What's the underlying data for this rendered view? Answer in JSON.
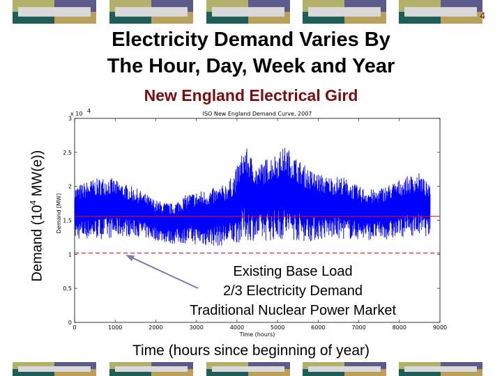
{
  "slide": {
    "number": "4",
    "title_line1": "Electricity Demand Varies By",
    "title_line2": "The Hour, Day, Week and Year",
    "subtitle": "New England Electrical Gird",
    "ylabel_main": "Demand (10",
    "ylabel_sup": "4",
    "ylabel_tail": " MW(e))",
    "xlabel": "Time (hours since beginning of year)",
    "annotation": [
      "Existing Base Load",
      "2/3 Electricity Demand",
      "Traditional Nuclear Power Market"
    ],
    "colors": {
      "accent_red": "#7a0c0c",
      "band_teal": "#1f5d57",
      "band_olive": "#b3b06a",
      "band_purple": "#5c5a8a",
      "band_gold": "#b8a05a",
      "band_light": "#d9d9d9"
    }
  },
  "chart_data": {
    "type": "line",
    "title": "ISO New England Demand Curve, 2007",
    "xlabel": "Time (hours)",
    "ylabel": "Demand [MW]",
    "y_multiplier": "x 10",
    "y_multiplier_exp": "4",
    "xlim": [
      0,
      9000
    ],
    "ylim": [
      0,
      30000
    ],
    "xticks": [
      "0",
      "1000",
      "2000",
      "3000",
      "4000",
      "5000",
      "6000",
      "7000",
      "8000",
      "9000"
    ],
    "yticks": [
      "0",
      "0.5",
      "1",
      "1.5",
      "2",
      "2.5",
      "3"
    ],
    "grid": false,
    "series": [
      {
        "color": "#0000ff",
        "x": [
          0,
          400,
          800,
          1200,
          1600,
          2000,
          2400,
          2800,
          3200,
          3600,
          3900,
          4200,
          4500,
          4800,
          5000,
          5200,
          5500,
          5800,
          6200,
          6600,
          7000,
          7400,
          7800,
          8200,
          8500,
          8760
        ],
        "ymin": [
          11500,
          11500,
          11500,
          12000,
          12000,
          11500,
          11000,
          11000,
          10500,
          10500,
          10500,
          11000,
          11000,
          11000,
          11000,
          11000,
          11000,
          11000,
          11500,
          11500,
          11500,
          11500,
          11500,
          12000,
          12000,
          12000
        ],
        "ymax": [
          20000,
          21000,
          21500,
          20500,
          19500,
          18000,
          17500,
          19000,
          19500,
          20000,
          21500,
          26000,
          23000,
          24500,
          25000,
          26000,
          24000,
          22500,
          21500,
          21500,
          20000,
          19500,
          20500,
          21500,
          22000,
          20000
        ]
      }
    ],
    "reference_lines": [
      {
        "y": 15600,
        "style": "solid",
        "color": "#ff0000"
      },
      {
        "y": 10200,
        "style": "dashed",
        "color": "#cc0000"
      }
    ]
  }
}
